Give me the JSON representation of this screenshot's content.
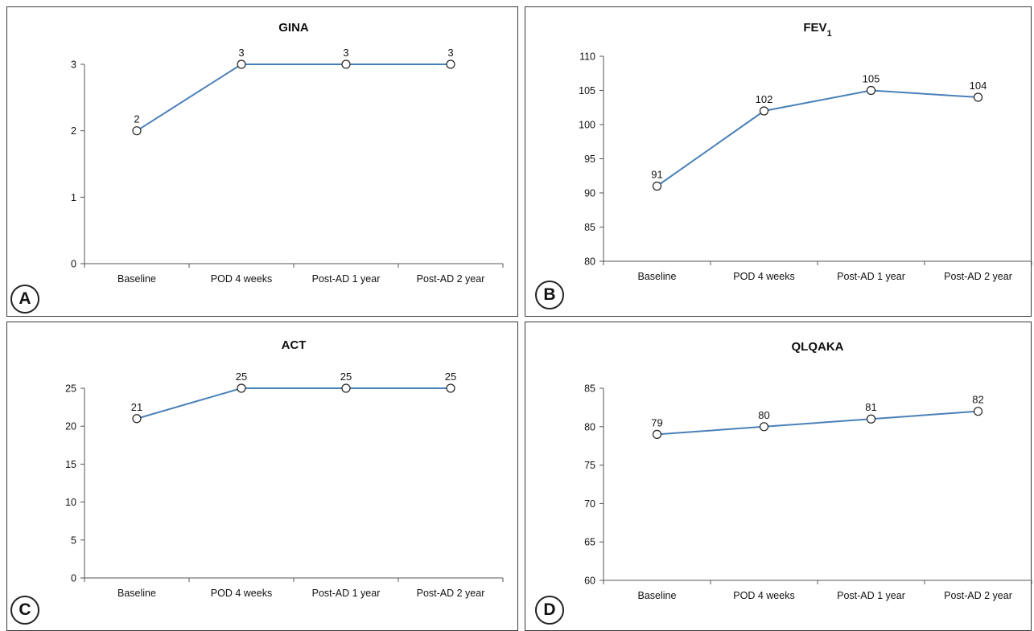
{
  "chart_data": [
    {
      "type": "line",
      "panel_label": "A",
      "title": "GINA",
      "title_sub": "",
      "categories": [
        "Baseline",
        "POD 4 weeks",
        "Post-AD 1 year",
        "Post-AD 2 year"
      ],
      "values": [
        2,
        3,
        3,
        3
      ],
      "data_labels": [
        "2",
        "3",
        "3",
        "3"
      ],
      "ylim": [
        0,
        3
      ],
      "yticks": [
        0,
        1,
        2,
        3
      ],
      "series_color": "#4a80b8",
      "grid": false
    },
    {
      "type": "line",
      "panel_label": "B",
      "title": "FEV",
      "title_sub": "1",
      "categories": [
        "Baseline",
        "POD 4 weeks",
        "Post-AD 1 year",
        "Post-AD 2 year"
      ],
      "values": [
        91,
        102,
        105,
        104
      ],
      "data_labels": [
        "91",
        "102",
        "105",
        "104"
      ],
      "ylim": [
        80,
        110
      ],
      "yticks": [
        80,
        85,
        90,
        95,
        100,
        105,
        110
      ],
      "series_color": "#4a80b8",
      "grid": false
    },
    {
      "type": "line",
      "panel_label": "C",
      "title": "ACT",
      "title_sub": "",
      "categories": [
        "Baseline",
        "POD 4 weeks",
        "Post-AD 1 year",
        "Post-AD 2 year"
      ],
      "values": [
        21,
        25,
        25,
        25
      ],
      "data_labels": [
        "21",
        "25",
        "25",
        "25"
      ],
      "ylim": [
        0,
        25
      ],
      "yticks": [
        0,
        5,
        10,
        15,
        20,
        25
      ],
      "series_color": "#4a80b8",
      "grid": false
    },
    {
      "type": "line",
      "panel_label": "D",
      "title": "QLQAKA",
      "title_sub": "",
      "categories": [
        "Baseline",
        "POD 4 weeks",
        "Post-AD 1 year",
        "Post-AD 2 year"
      ],
      "values": [
        79,
        80,
        81,
        82
      ],
      "data_labels": [
        "79",
        "80",
        "81",
        "82"
      ],
      "ylim": [
        60,
        85
      ],
      "yticks": [
        60,
        65,
        70,
        75,
        80,
        85
      ],
      "series_color": "#4a80b8",
      "grid": false
    }
  ]
}
